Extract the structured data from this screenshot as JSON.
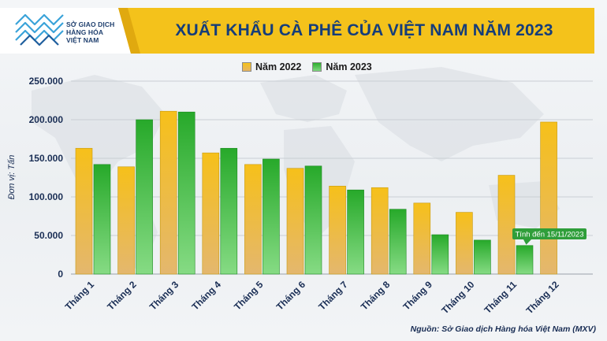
{
  "header": {
    "logo_lines": [
      "SỞ GIAO DỊCH",
      "HÀNG HÓA",
      "VIỆT NAM"
    ],
    "title": "XUẤT KHẨU CÀ PHÊ CỦA VIỆT NAM NĂM 2023"
  },
  "colors": {
    "series_2022": "#f2b705",
    "series_2023": "#37b937",
    "banner": "#f4c21b",
    "title": "#153d7a"
  },
  "chart_data": {
    "type": "bar",
    "title": "XUẤT KHẨU CÀ PHÊ CỦA VIỆT NAM NĂM 2023",
    "ylabel": "Đơn vị: Tấn",
    "xlabel": "",
    "ylim": [
      0,
      250000
    ],
    "yticks": [
      "0",
      "50.000",
      "100.000",
      "150.000",
      "200.000",
      "250.000"
    ],
    "grid": true,
    "legend_position": "top-center",
    "categories": [
      "Tháng 1",
      "Tháng 2",
      "Tháng 3",
      "Tháng 4",
      "Tháng 5",
      "Tháng 6",
      "Tháng 7",
      "Tháng 8",
      "Tháng 9",
      "Tháng 10",
      "Tháng 11",
      "Tháng 12"
    ],
    "series": [
      {
        "name": "Năm 2022",
        "values": [
          163000,
          139000,
          211000,
          157000,
          142000,
          137000,
          114000,
          112000,
          92000,
          80000,
          128000,
          197000
        ]
      },
      {
        "name": "Năm 2023",
        "values": [
          142000,
          200000,
          210000,
          163000,
          149000,
          140000,
          109000,
          84000,
          51000,
          44000,
          37000,
          null
        ]
      }
    ],
    "annotation": {
      "text": "Tính đến 15/11/2023",
      "category": "Tháng 11",
      "series": "Năm 2023"
    }
  },
  "source": "Nguồn: Sở Giao dịch Hàng hóa Việt Nam (MXV)"
}
